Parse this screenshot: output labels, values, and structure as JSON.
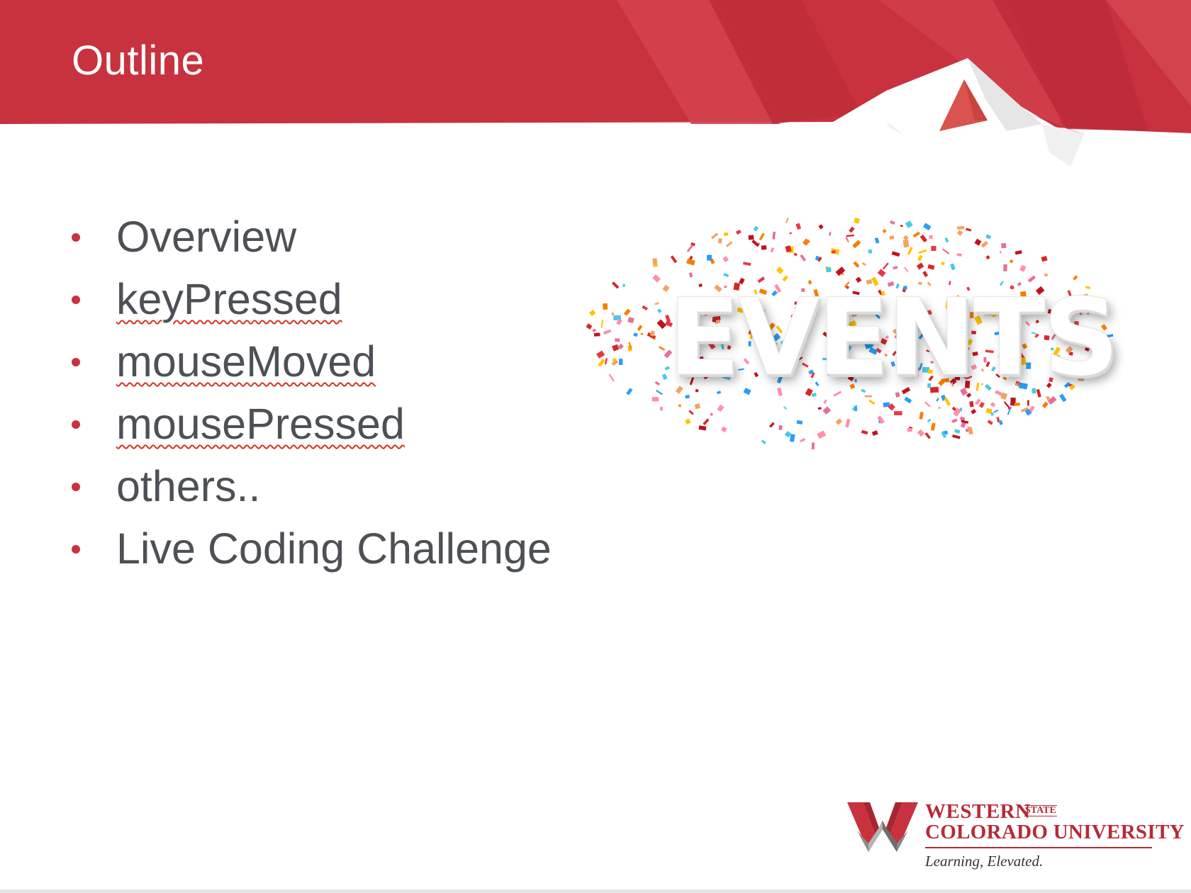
{
  "slide": {
    "title": "Outline",
    "bullets": [
      {
        "text": "Overview",
        "spellcheck": false
      },
      {
        "text": "keyPressed",
        "spellcheck": true
      },
      {
        "text": "mouseMoved",
        "spellcheck": true
      },
      {
        "text": "mousePressed",
        "spellcheck": true
      },
      {
        "text": "others..",
        "spellcheck": false
      },
      {
        "text": "Live Coding Challenge",
        "spellcheck": false
      }
    ],
    "image_word": "EVENTS",
    "logo": {
      "western": "WESTERN",
      "state": "STATE",
      "colorado": "COLORADO UNIVERSITY",
      "tagline": "Learning, Elevated."
    }
  },
  "colors": {
    "banner_red": "#c8323e",
    "bullet_red": "#c8323e",
    "text_gray": "#4d5156",
    "logo_red": "#b72a36"
  }
}
